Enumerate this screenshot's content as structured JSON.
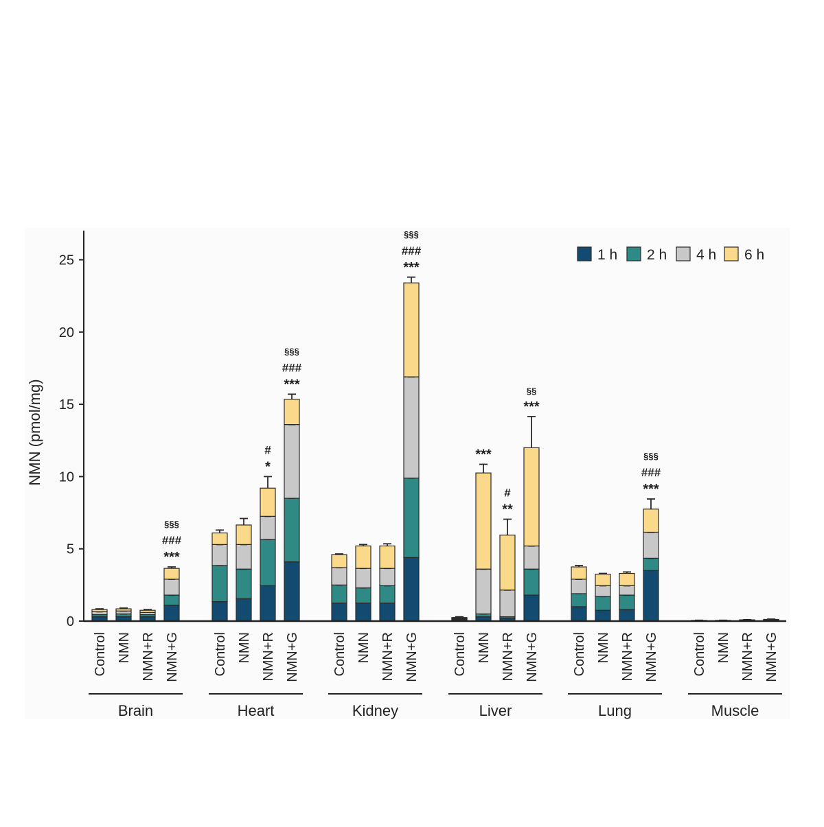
{
  "chart_data": {
    "type": "bar",
    "stacked": true,
    "title": "",
    "xlabel": "",
    "ylabel": "NMN (pmol/mg)",
    "ylim": [
      0,
      27
    ],
    "yticks": [
      0,
      5,
      10,
      15,
      20,
      25
    ],
    "grid": false,
    "legend_position": "top-right",
    "legend": [
      "1 h",
      "2 h",
      "4 h",
      "6 h"
    ],
    "colors": [
      "#134a6f",
      "#2f8a86",
      "#c8c8c8",
      "#fbd98a"
    ],
    "treatments": [
      "Control",
      "NMN",
      "NMN+R",
      "NMN+G"
    ],
    "groups": [
      {
        "name": "Brain",
        "bars": [
          {
            "label": "Control",
            "cumulative": [
              0.3,
              0.45,
              0.65,
              0.8
            ],
            "error": 0.05,
            "marks": []
          },
          {
            "label": "NMN",
            "cumulative": [
              0.3,
              0.5,
              0.7,
              0.85
            ],
            "error": 0.05,
            "marks": []
          },
          {
            "label": "NMN+R",
            "cumulative": [
              0.3,
              0.45,
              0.6,
              0.75
            ],
            "error": 0.05,
            "marks": []
          },
          {
            "label": "NMN+G",
            "cumulative": [
              1.1,
              1.8,
              2.9,
              3.65
            ],
            "error": 0.1,
            "marks": [
              "§§§",
              "###",
              "***"
            ]
          }
        ]
      },
      {
        "name": "Heart",
        "bars": [
          {
            "label": "Control",
            "cumulative": [
              1.35,
              3.85,
              5.3,
              6.1
            ],
            "error": 0.2,
            "marks": []
          },
          {
            "label": "NMN",
            "cumulative": [
              1.55,
              3.6,
              5.3,
              6.65
            ],
            "error": 0.45,
            "marks": []
          },
          {
            "label": "NMN+R",
            "cumulative": [
              2.45,
              5.65,
              7.25,
              9.2
            ],
            "error": 0.8,
            "marks": [
              "#",
              "*"
            ]
          },
          {
            "label": "NMN+G",
            "cumulative": [
              4.1,
              8.5,
              13.6,
              15.35
            ],
            "error": 0.35,
            "marks": [
              "§§§",
              "###",
              "***"
            ]
          }
        ]
      },
      {
        "name": "Kidney",
        "bars": [
          {
            "label": "Control",
            "cumulative": [
              1.25,
              2.5,
              3.7,
              4.6
            ],
            "error": 0.05,
            "marks": []
          },
          {
            "label": "NMN",
            "cumulative": [
              1.25,
              2.3,
              3.65,
              5.2
            ],
            "error": 0.1,
            "marks": []
          },
          {
            "label": "NMN+R",
            "cumulative": [
              1.25,
              2.45,
              3.65,
              5.2
            ],
            "error": 0.15,
            "marks": []
          },
          {
            "label": "NMN+G",
            "cumulative": [
              4.4,
              9.9,
              16.9,
              23.4
            ],
            "error": 0.4,
            "marks": [
              "§§§",
              "###",
              "***"
            ]
          }
        ]
      },
      {
        "name": "Liver",
        "bars": [
          {
            "label": "Control",
            "cumulative": [
              0.1,
              0.15,
              0.2,
              0.25
            ],
            "error": 0.05,
            "marks": []
          },
          {
            "label": "NMN",
            "cumulative": [
              0.3,
              0.5,
              3.6,
              10.25
            ],
            "error": 0.6,
            "marks": [
              "***"
            ]
          },
          {
            "label": "NMN+R",
            "cumulative": [
              0.2,
              0.3,
              2.15,
              5.95
            ],
            "error": 1.1,
            "marks": [
              "#",
              "**"
            ]
          },
          {
            "label": "NMN+G",
            "cumulative": [
              1.8,
              3.6,
              5.2,
              12.0
            ],
            "error": 2.15,
            "marks": [
              "§§",
              "***"
            ]
          }
        ]
      },
      {
        "name": "Lung",
        "bars": [
          {
            "label": "Control",
            "cumulative": [
              1.0,
              1.9,
              2.9,
              3.75
            ],
            "error": 0.1,
            "marks": []
          },
          {
            "label": "NMN",
            "cumulative": [
              0.75,
              1.7,
              2.45,
              3.25
            ],
            "error": 0.05,
            "marks": []
          },
          {
            "label": "NMN+R",
            "cumulative": [
              0.8,
              1.8,
              2.45,
              3.3
            ],
            "error": 0.1,
            "marks": []
          },
          {
            "label": "NMN+G",
            "cumulative": [
              3.5,
              4.35,
              6.15,
              7.75
            ],
            "error": 0.7,
            "marks": [
              "§§§",
              "###",
              "***"
            ]
          }
        ]
      },
      {
        "name": "Muscle",
        "bars": [
          {
            "label": "Control",
            "cumulative": [
              0.02,
              0.03,
              0.04,
              0.05
            ],
            "error": 0.01,
            "marks": []
          },
          {
            "label": "NMN",
            "cumulative": [
              0.02,
              0.03,
              0.04,
              0.05
            ],
            "error": 0.01,
            "marks": []
          },
          {
            "label": "NMN+R",
            "cumulative": [
              0.03,
              0.05,
              0.07,
              0.09
            ],
            "error": 0.01,
            "marks": []
          },
          {
            "label": "NMN+G",
            "cumulative": [
              0.05,
              0.08,
              0.1,
              0.12
            ],
            "error": 0.02,
            "marks": []
          }
        ]
      }
    ]
  }
}
